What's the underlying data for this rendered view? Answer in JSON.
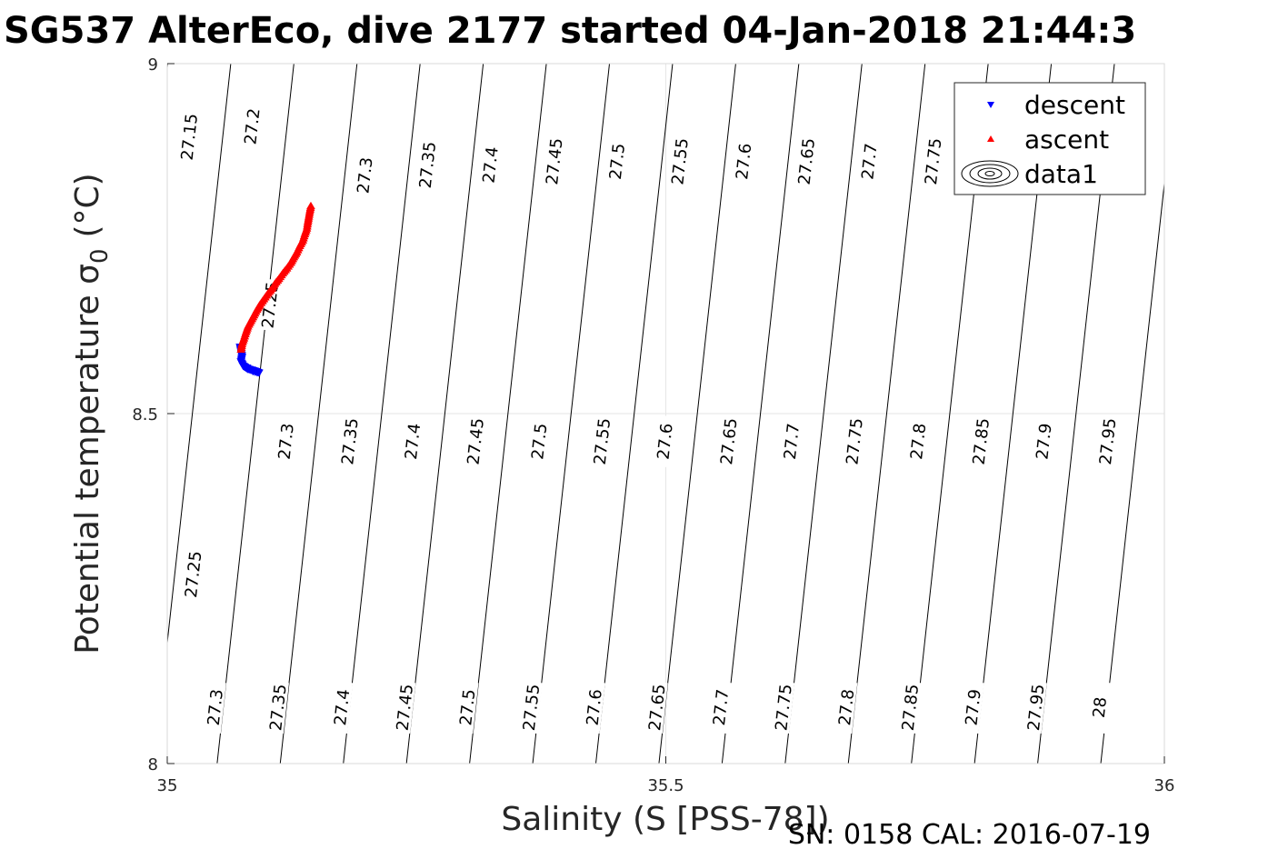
{
  "chart_data": {
    "type": "scatter",
    "title": "SG537 AlterEco, dive 2177 started 04-Jan-2018 21:44:3",
    "xlabel": "Salinity (S [PSS-78])",
    "ylabel": "Potential temperature σ",
    "ylabel_subscript": "0",
    "ylabel_unit": "(°C)",
    "footer": "SN: 0158  CAL: 2016-07-19",
    "xlim": [
      35,
      36
    ],
    "ylim": [
      8,
      9
    ],
    "xticks": [
      "35",
      "35.5",
      "36"
    ],
    "yticks": [
      "8",
      "8.5",
      "9"
    ],
    "grid": true,
    "legend_position": "top-right",
    "legend": [
      {
        "label": "descent",
        "marker": "down-triangle",
        "color": "#0000ff"
      },
      {
        "label": "ascent",
        "marker": "up-triangle",
        "color": "#ff0000"
      },
      {
        "label": "data1",
        "marker": "contour",
        "color": "#000000"
      }
    ],
    "contours": {
      "levels": [
        27.15,
        27.2,
        27.25,
        27.3,
        27.35,
        27.4,
        27.45,
        27.5,
        27.55,
        27.6,
        27.65,
        27.7,
        27.75,
        27.8,
        27.85,
        27.9,
        27.95,
        28
      ],
      "slope_per_degC": 0.077,
      "color": "#000000",
      "labels": [
        {
          "text": "27.15",
          "s": 35.024,
          "t": 8.895
        },
        {
          "text": "27.2",
          "s": 35.087,
          "t": 8.91
        },
        {
          "text": "27.3",
          "s": 35.2,
          "t": 8.84
        },
        {
          "text": "27.35",
          "s": 35.263,
          "t": 8.855
        },
        {
          "text": "27.4",
          "s": 35.326,
          "t": 8.855
        },
        {
          "text": "27.45",
          "s": 35.39,
          "t": 8.86
        },
        {
          "text": "27.5",
          "s": 35.453,
          "t": 8.86
        },
        {
          "text": "27.55",
          "s": 35.516,
          "t": 8.86
        },
        {
          "text": "27.6",
          "s": 35.58,
          "t": 8.86
        },
        {
          "text": "27.65",
          "s": 35.643,
          "t": 8.86
        },
        {
          "text": "27.7",
          "s": 35.706,
          "t": 8.86
        },
        {
          "text": "27.75",
          "s": 35.77,
          "t": 8.86
        },
        {
          "text": "27.25",
          "s": 35.105,
          "t": 8.655
        },
        {
          "text": "27.3",
          "s": 35.121,
          "t": 8.46
        },
        {
          "text": "27.35",
          "s": 35.185,
          "t": 8.46
        },
        {
          "text": "27.4",
          "s": 35.248,
          "t": 8.46
        },
        {
          "text": "27.45",
          "s": 35.311,
          "t": 8.46
        },
        {
          "text": "27.5",
          "s": 35.375,
          "t": 8.46
        },
        {
          "text": "27.55",
          "s": 35.438,
          "t": 8.46
        },
        {
          "text": "27.6",
          "s": 35.501,
          "t": 8.46
        },
        {
          "text": "27.65",
          "s": 35.565,
          "t": 8.46
        },
        {
          "text": "27.7",
          "s": 35.628,
          "t": 8.46
        },
        {
          "text": "27.75",
          "s": 35.691,
          "t": 8.46
        },
        {
          "text": "27.8",
          "s": 35.755,
          "t": 8.46
        },
        {
          "text": "27.85",
          "s": 35.818,
          "t": 8.46
        },
        {
          "text": "27.9",
          "s": 35.881,
          "t": 8.46
        },
        {
          "text": "27.95",
          "s": 35.945,
          "t": 8.46
        },
        {
          "text": "27.25",
          "s": 35.028,
          "t": 8.27
        },
        {
          "text": "27.3",
          "s": 35.05,
          "t": 8.08
        },
        {
          "text": "27.35",
          "s": 35.113,
          "t": 8.08
        },
        {
          "text": "27.4",
          "s": 35.177,
          "t": 8.08
        },
        {
          "text": "27.45",
          "s": 35.24,
          "t": 8.08
        },
        {
          "text": "27.5",
          "s": 35.303,
          "t": 8.08
        },
        {
          "text": "27.55",
          "s": 35.367,
          "t": 8.08
        },
        {
          "text": "27.6",
          "s": 35.43,
          "t": 8.08
        },
        {
          "text": "27.65",
          "s": 35.493,
          "t": 8.08
        },
        {
          "text": "27.7",
          "s": 35.557,
          "t": 8.08
        },
        {
          "text": "27.75",
          "s": 35.62,
          "t": 8.08
        },
        {
          "text": "27.8",
          "s": 35.683,
          "t": 8.08
        },
        {
          "text": "27.85",
          "s": 35.747,
          "t": 8.08
        },
        {
          "text": "27.9",
          "s": 35.81,
          "t": 8.08
        },
        {
          "text": "27.95",
          "s": 35.873,
          "t": 8.08
        },
        {
          "text": "28",
          "s": 35.937,
          "t": 8.08
        }
      ]
    },
    "series": [
      {
        "name": "descent",
        "color": "#0000ff",
        "marker": "down-triangle",
        "points": [
          [
            35.073,
            8.595
          ],
          [
            35.074,
            8.588
          ],
          [
            35.075,
            8.581
          ],
          [
            35.074,
            8.574
          ],
          [
            35.076,
            8.568
          ],
          [
            35.078,
            8.566
          ],
          [
            35.081,
            8.563
          ],
          [
            35.085,
            8.562
          ],
          [
            35.089,
            8.56
          ],
          [
            35.092,
            8.558
          ],
          [
            35.086,
            8.56
          ],
          [
            35.08,
            8.565
          ]
        ]
      },
      {
        "name": "ascent",
        "color": "#ff0000",
        "marker": "up-triangle",
        "points": [
          [
            35.074,
            8.592
          ],
          [
            35.075,
            8.6
          ],
          [
            35.077,
            8.608
          ],
          [
            35.079,
            8.617
          ],
          [
            35.081,
            8.625
          ],
          [
            35.084,
            8.633
          ],
          [
            35.087,
            8.641
          ],
          [
            35.09,
            8.649
          ],
          [
            35.093,
            8.656
          ],
          [
            35.097,
            8.664
          ],
          [
            35.101,
            8.672
          ],
          [
            35.105,
            8.679
          ],
          [
            35.108,
            8.686
          ],
          [
            35.112,
            8.693
          ],
          [
            35.116,
            8.701
          ],
          [
            35.12,
            8.708
          ],
          [
            35.124,
            8.716
          ],
          [
            35.127,
            8.724
          ],
          [
            35.13,
            8.731
          ],
          [
            35.133,
            8.74
          ],
          [
            35.136,
            8.748
          ],
          [
            35.138,
            8.757
          ],
          [
            35.14,
            8.765
          ],
          [
            35.141,
            8.774
          ],
          [
            35.142,
            8.782
          ],
          [
            35.143,
            8.79
          ],
          [
            35.144,
            8.797
          ]
        ]
      }
    ]
  }
}
